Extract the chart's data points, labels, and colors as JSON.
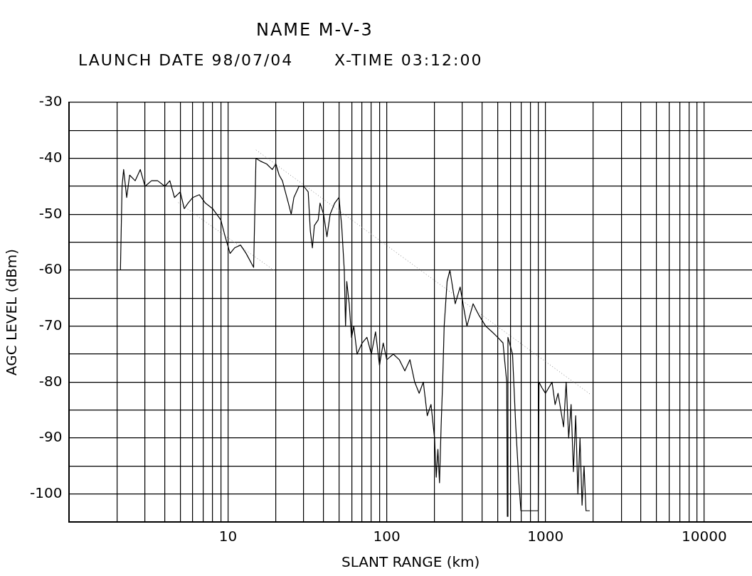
{
  "chart_data": {
    "type": "line",
    "title": "NAME M-V-3",
    "annotations": [
      "LAUNCH DATE 98/07/04",
      "X-TIME 03:12:00"
    ],
    "xlabel": "SLANT RANGE (km)",
    "ylabel": "AGC LEVEL (dBm)",
    "log": "x",
    "grid": true,
    "legend": false,
    "marker": "none",
    "xlim": [
      1,
      20000
    ],
    "xticks": [
      {
        "value": 2,
        "label": null
      },
      {
        "value": 3,
        "label": null
      },
      {
        "value": 4,
        "label": null
      },
      {
        "value": 5,
        "label": null
      },
      {
        "value": 6,
        "label": null
      },
      {
        "value": 7,
        "label": null
      },
      {
        "value": 8,
        "label": null
      },
      {
        "value": 9,
        "label": null
      },
      10,
      {
        "value": 20,
        "label": null
      },
      {
        "value": 30,
        "label": null
      },
      {
        "value": 40,
        "label": null
      },
      {
        "value": 50,
        "label": null
      },
      {
        "value": 60,
        "label": null
      },
      {
        "value": 70,
        "label": null
      },
      {
        "value": 80,
        "label": null
      },
      {
        "value": 90,
        "label": null
      },
      100,
      {
        "value": 200,
        "label": null
      },
      {
        "value": 300,
        "label": null
      },
      {
        "value": 400,
        "label": null
      },
      {
        "value": 500,
        "label": null
      },
      {
        "value": 600,
        "label": null
      },
      {
        "value": 700,
        "label": null
      },
      {
        "value": 800,
        "label": null
      },
      {
        "value": 900,
        "label": null
      },
      1000,
      {
        "value": 2000,
        "label": null
      },
      {
        "value": 3000,
        "label": null
      },
      {
        "value": 4000,
        "label": null
      },
      {
        "value": 5000,
        "label": null
      },
      {
        "value": 6000,
        "label": null
      },
      {
        "value": 7000,
        "label": null
      },
      {
        "value": 8000,
        "label": null
      },
      {
        "value": 9000,
        "label": null
      },
      10000
    ],
    "ylim": [
      -105,
      -30
    ],
    "yticks": [
      -30,
      {
        "value": -35,
        "label": null
      },
      -40,
      {
        "value": -45,
        "label": null
      },
      -50,
      {
        "value": -55,
        "label": null
      },
      -60,
      {
        "value": -65,
        "label": null
      },
      -70,
      {
        "value": -75,
        "label": null
      },
      -80,
      {
        "value": -85,
        "label": null
      },
      -90,
      {
        "value": -95,
        "label": null
      },
      -100
    ],
    "series": [
      {
        "color": "#000000",
        "line_style": "solid",
        "x": [
          2.1,
          2.15,
          2.2,
          2.3,
          2.4,
          2.6,
          2.8,
          3,
          3.3,
          3.6,
          4,
          4.3,
          4.6,
          5,
          5.3,
          5.6,
          6,
          6.6,
          7.2,
          8,
          9,
          9.6,
          10.3,
          11,
          12,
          13,
          14.5,
          15,
          16,
          17.5,
          19,
          20,
          21,
          22,
          24,
          25,
          26,
          28,
          30,
          32,
          33,
          34,
          35,
          37,
          38,
          40,
          42,
          44,
          47,
          50,
          52,
          54,
          55,
          56,
          58,
          60,
          62,
          65,
          70,
          75,
          80,
          85,
          90,
          95,
          100,
          110,
          120,
          130,
          140,
          150,
          160,
          170,
          180,
          190,
          200,
          205,
          210,
          215,
          220,
          225,
          230,
          240,
          250,
          270,
          290,
          320,
          350,
          380,
          420,
          460,
          500,
          540,
          570,
          575,
          580,
          620,
          650,
          680,
          700,
          900,
          910,
          950,
          1000,
          1100,
          1150,
          1200,
          1300,
          1350,
          1400,
          1450,
          1500,
          1550,
          1600,
          1650,
          1700,
          1750,
          1800,
          1900
        ],
        "values": [
          -60,
          -45,
          -42,
          -47,
          -43,
          -44,
          -42,
          -45,
          -44,
          -44,
          -45,
          -44,
          -47,
          -46,
          -49,
          -48,
          -47,
          -46.5,
          -48,
          -49,
          -51,
          -54,
          -57,
          -56,
          -55.5,
          -57,
          -59.5,
          -40,
          -40.5,
          -41,
          -42,
          -41,
          -43,
          -44,
          -48,
          -50,
          -47,
          -45,
          -45,
          -46,
          -53,
          -56,
          -52,
          -51,
          -48,
          -50,
          -54,
          -50,
          -48,
          -47,
          -52,
          -60,
          -70,
          -62,
          -66,
          -72,
          -70,
          -75,
          -73,
          -72,
          -75,
          -71,
          -77,
          -73,
          -76,
          -75,
          -76,
          -78,
          -76,
          -80,
          -82,
          -80,
          -86,
          -84,
          -90,
          -97,
          -92,
          -98,
          -88,
          -80,
          -70,
          -62,
          -60,
          -66,
          -63,
          -70,
          -66,
          -68,
          -70,
          -71,
          -72,
          -73,
          -80,
          -104,
          -72,
          -75,
          -88,
          -98,
          -103,
          -103,
          -80,
          -81,
          -82,
          -80,
          -84,
          -82,
          -88,
          -80,
          -90,
          -84,
          -96,
          -86,
          -100,
          -90,
          -102,
          -95,
          -103,
          -103
        ]
      },
      {
        "color": "#888888",
        "line_style": "dotted",
        "x": [
          15,
          1900
        ],
        "values": [
          -38.5,
          -82.1
        ]
      },
      {
        "color": "#888888",
        "line_style": "dotted",
        "x": [
          4.86,
          19.9
        ],
        "values": [
          -47.9,
          -60.2
        ]
      }
    ]
  }
}
